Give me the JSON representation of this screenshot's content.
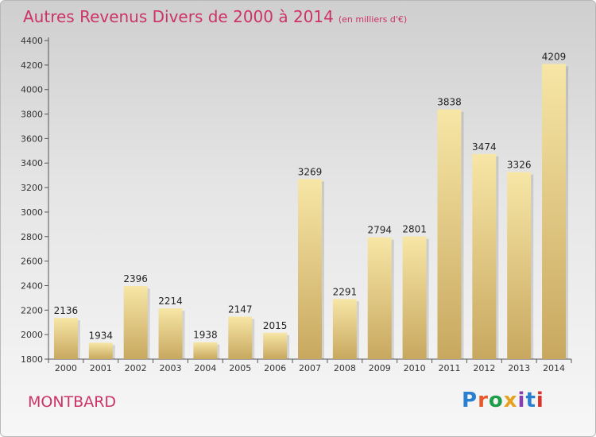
{
  "title": "Autres Revenus Divers de 2000 à 2014",
  "subtitle": "(en milliers d'€)",
  "commune": "MONTBARD",
  "brand": "Proxiti",
  "brand_colors": [
    "#2a7fd0",
    "#e8592a",
    "#1f9e4a",
    "#e6a11f",
    "#8a3fb0",
    "#2a7fd0",
    "#d9342b"
  ],
  "colors": {
    "title": "#cc3366",
    "bar_light": "#f7e6a6",
    "bar_dark": "#c8a85f"
  },
  "chart_data": {
    "type": "bar",
    "categories": [
      "2000",
      "2001",
      "2002",
      "2003",
      "2004",
      "2005",
      "2006",
      "2007",
      "2008",
      "2009",
      "2010",
      "2011",
      "2012",
      "2013",
      "2014"
    ],
    "values": [
      2136,
      1934,
      2396,
      2214,
      1938,
      2147,
      2015,
      3269,
      2291,
      2794,
      2801,
      3838,
      3474,
      3326,
      4209
    ],
    "yticks": [
      1800,
      2000,
      2200,
      2400,
      2600,
      2800,
      3000,
      3200,
      3400,
      3600,
      3800,
      4000,
      4200,
      4400
    ],
    "ylim": [
      1800,
      4400
    ],
    "xlabel": "",
    "ylabel": "",
    "grid": false,
    "legend": "none"
  }
}
